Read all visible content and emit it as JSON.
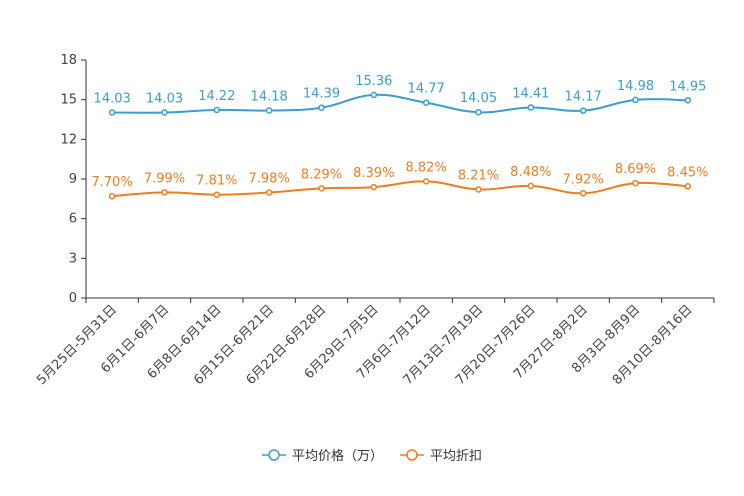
{
  "chart_data": {
    "type": "line",
    "categories": [
      "5月25日-5月31日",
      "6月1日-6月7日",
      "6月8日-6月14日",
      "6月15日-6月21日",
      "6月22日-6月28日",
      "6月29日-7月5日",
      "7月6日-7月12日",
      "7月13日-7月19日",
      "7月20日-7月26日",
      "7月27日-8月2日",
      "8月3日-8月9日",
      "8月10日-8月16日"
    ],
    "ylim": [
      0,
      18
    ],
    "yticks": [
      0,
      3,
      6,
      9,
      12,
      15,
      18
    ],
    "series": [
      {
        "name": "平均价格（万）",
        "color": "#3a9dd1",
        "values": [
          14.03,
          14.03,
          14.22,
          14.18,
          14.39,
          15.36,
          14.77,
          14.05,
          14.41,
          14.17,
          14.98,
          14.95
        ],
        "labels": [
          "14.03",
          "14.03",
          "14.22",
          "14.18",
          "14.39",
          "15.36",
          "14.77",
          "14.05",
          "14.41",
          "14.17",
          "14.98",
          "14.95"
        ]
      },
      {
        "name": "平均折扣",
        "color": "#f07c1e",
        "values": [
          7.7,
          7.99,
          7.81,
          7.98,
          8.29,
          8.39,
          8.82,
          8.21,
          8.48,
          7.92,
          8.69,
          8.45
        ],
        "labels": [
          "7.70%",
          "7.99%",
          "7.81%",
          "7.98%",
          "8.29%",
          "8.39%",
          "8.82%",
          "8.21%",
          "8.48%",
          "7.92%",
          "8.69%",
          "8.45%"
        ]
      }
    ],
    "legend_position": "bottom-center",
    "grid": false
  }
}
